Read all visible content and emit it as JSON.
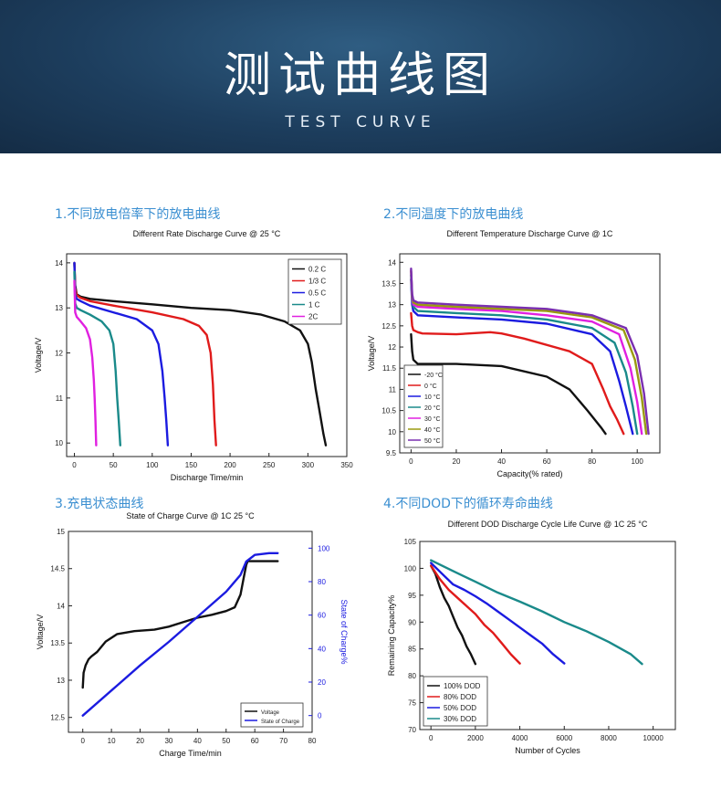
{
  "banner": {
    "title": "测试曲线图",
    "subtitle": "TEST CURVE"
  },
  "sections": [
    "1.不同放电倍率下的放电曲线",
    "2.不同温度下的放电曲线",
    "3.充电状态曲线",
    "4.不同DOD下的循环寿命曲线"
  ],
  "colors": {
    "banner": "#1d3e5e",
    "section_title": "#3b8fd1"
  },
  "chart_data": [
    {
      "type": "line",
      "title": "Different Rate Discharge Curve @ 25 °C",
      "xlabel": "Discharge Time/min",
      "ylabel": "Voltage/V",
      "xlim": [
        -10,
        350
      ],
      "ylim": [
        9.7,
        14.2
      ],
      "xticks": [
        0,
        50,
        100,
        150,
        200,
        250,
        300,
        350
      ],
      "yticks": [
        10,
        11,
        12,
        13,
        14
      ],
      "legend_position": "top-right",
      "series": [
        {
          "name": "0.2 C",
          "color": "#111111",
          "x": [
            0,
            1,
            3,
            8,
            20,
            50,
            100,
            150,
            200,
            240,
            270,
            290,
            300,
            305,
            310,
            315,
            320,
            323
          ],
          "y": [
            14.0,
            13.5,
            13.3,
            13.25,
            13.2,
            13.15,
            13.08,
            13.0,
            12.95,
            12.85,
            12.7,
            12.5,
            12.2,
            11.8,
            11.2,
            10.7,
            10.2,
            9.95
          ]
        },
        {
          "name": "1/3 C",
          "color": "#e01b1b",
          "x": [
            0,
            1,
            3,
            8,
            20,
            50,
            100,
            140,
            160,
            170,
            175,
            178,
            180,
            182
          ],
          "y": [
            14.0,
            13.45,
            13.28,
            13.22,
            13.15,
            13.05,
            12.9,
            12.75,
            12.6,
            12.4,
            12.0,
            11.3,
            10.5,
            9.95
          ]
        },
        {
          "name": "0.5 C",
          "color": "#1b1be0",
          "x": [
            0,
            1,
            3,
            8,
            20,
            50,
            80,
            100,
            108,
            113,
            116,
            118,
            120
          ],
          "y": [
            14.0,
            13.3,
            13.2,
            13.15,
            13.05,
            12.9,
            12.75,
            12.5,
            12.2,
            11.6,
            11.0,
            10.5,
            9.95
          ]
        },
        {
          "name": "1 C",
          "color": "#1a8a8a",
          "x": [
            0,
            1,
            3,
            8,
            20,
            35,
            45,
            50,
            53,
            55,
            57,
            59
          ],
          "y": [
            13.8,
            13.1,
            13.0,
            12.95,
            12.85,
            12.7,
            12.5,
            12.2,
            11.6,
            11.0,
            10.5,
            9.95
          ]
        },
        {
          "name": "2C",
          "color": "#e020e0",
          "x": [
            0,
            1,
            3,
            8,
            15,
            20,
            23,
            25,
            26,
            27,
            28
          ],
          "y": [
            13.6,
            12.9,
            12.8,
            12.7,
            12.55,
            12.3,
            11.9,
            11.4,
            11.0,
            10.5,
            9.95
          ]
        }
      ]
    },
    {
      "type": "line",
      "title": "Different Temperature Discharge Curve @ 1C",
      "xlabel": "Capacity(% rated)",
      "ylabel": "Voltage/V",
      "xlim": [
        -5,
        110
      ],
      "ylim": [
        9.5,
        14.2
      ],
      "xticks": [
        0,
        20,
        40,
        60,
        80,
        100
      ],
      "yticks": [
        9.5,
        10.0,
        10.5,
        11.0,
        11.5,
        12.0,
        12.5,
        13.0,
        13.5,
        14.0
      ],
      "legend_position": "bottom-left",
      "series": [
        {
          "name": "-20 °C",
          "color": "#111111",
          "x": [
            0,
            0.5,
            1,
            3,
            5,
            20,
            40,
            60,
            70,
            78,
            84,
            86
          ],
          "y": [
            12.3,
            11.9,
            11.7,
            11.6,
            11.6,
            11.6,
            11.55,
            11.3,
            11.0,
            10.5,
            10.1,
            9.95
          ]
        },
        {
          "name": "0 °C",
          "color": "#e01b1b",
          "x": [
            0,
            0.5,
            1,
            3,
            5,
            20,
            35,
            40,
            50,
            70,
            80,
            85,
            88,
            91,
            94
          ],
          "y": [
            12.8,
            12.5,
            12.4,
            12.35,
            12.32,
            12.3,
            12.35,
            12.32,
            12.2,
            11.9,
            11.6,
            11.0,
            10.6,
            10.3,
            9.95
          ]
        },
        {
          "name": "10 °C",
          "color": "#1b1be0",
          "x": [
            0,
            0.5,
            1,
            3,
            20,
            40,
            60,
            80,
            88,
            92,
            95,
            98
          ],
          "y": [
            13.6,
            13.0,
            12.85,
            12.75,
            12.7,
            12.65,
            12.55,
            12.3,
            11.9,
            11.2,
            10.6,
            9.95
          ]
        },
        {
          "name": "20 °C",
          "color": "#1a8a8a",
          "x": [
            0,
            0.5,
            1,
            3,
            20,
            40,
            60,
            80,
            90,
            95,
            98,
            100
          ],
          "y": [
            13.7,
            13.1,
            12.95,
            12.85,
            12.8,
            12.75,
            12.65,
            12.45,
            12.1,
            11.4,
            10.6,
            9.95
          ]
        },
        {
          "name": "30 °C",
          "color": "#e020e0",
          "x": [
            0,
            0.5,
            1,
            3,
            20,
            40,
            60,
            80,
            92,
            97,
            100,
            102
          ],
          "y": [
            13.8,
            13.15,
            13.0,
            12.95,
            12.9,
            12.85,
            12.75,
            12.6,
            12.3,
            11.5,
            10.7,
            9.95
          ]
        },
        {
          "name": "40 °C",
          "color": "#9a9a10",
          "x": [
            0,
            0.5,
            1,
            3,
            20,
            40,
            60,
            80,
            94,
            99,
            102,
            104
          ],
          "y": [
            13.8,
            13.2,
            13.05,
            13.0,
            12.95,
            12.9,
            12.85,
            12.7,
            12.4,
            11.7,
            10.8,
            9.95
          ]
        },
        {
          "name": "50 °C",
          "color": "#7a2fb0",
          "x": [
            0,
            0.5,
            1,
            3,
            20,
            40,
            60,
            80,
            95,
            100,
            103,
            105
          ],
          "y": [
            13.85,
            13.25,
            13.1,
            13.05,
            13.0,
            12.95,
            12.9,
            12.75,
            12.45,
            11.8,
            10.9,
            9.95
          ]
        }
      ]
    },
    {
      "type": "line",
      "title": "State of Charge Curve @ 1C  25 °C",
      "xlabel": "Charge Time/min",
      "ylabel": "Voltage/V",
      "y2label": "State of Charge%",
      "xlim": [
        -5,
        80
      ],
      "ylim": [
        12.3,
        15.0
      ],
      "y2lim": [
        -10,
        110
      ],
      "xticks": [
        0,
        10,
        20,
        30,
        40,
        50,
        60,
        70,
        80
      ],
      "yticks": [
        12.5,
        13.0,
        13.5,
        14.0,
        14.5,
        15.0
      ],
      "y2ticks": [
        0,
        20,
        40,
        60,
        80,
        100
      ],
      "legend_position": "bottom-right",
      "series": [
        {
          "name": "Voltage",
          "color": "#111111",
          "axis": "left",
          "x": [
            0,
            0.3,
            1,
            2,
            3,
            5,
            8,
            12,
            18,
            25,
            30,
            35,
            40,
            45,
            50,
            53,
            55,
            56,
            57,
            57.5,
            60,
            68
          ],
          "y": [
            12.9,
            13.1,
            13.2,
            13.28,
            13.32,
            13.38,
            13.52,
            13.62,
            13.66,
            13.68,
            13.72,
            13.78,
            13.84,
            13.88,
            13.93,
            13.98,
            14.15,
            14.35,
            14.55,
            14.6,
            14.6,
            14.6
          ]
        },
        {
          "name": "State of Charge",
          "color": "#1b1be0",
          "axis": "right",
          "x": [
            0,
            10,
            20,
            30,
            40,
            50,
            55,
            57,
            60,
            65,
            68
          ],
          "y": [
            0,
            15,
            30,
            44,
            59,
            74,
            84,
            92,
            96,
            97,
            97
          ]
        }
      ]
    },
    {
      "type": "line",
      "title": "Different DOD Discharge Cycle Life Curve @ 1C  25 °C",
      "xlabel": "Number of Cycles",
      "ylabel": "Remaining Capacity%",
      "xlim": [
        -500,
        11000
      ],
      "ylim": [
        70,
        105
      ],
      "xticks": [
        0,
        2000,
        4000,
        6000,
        8000,
        10000
      ],
      "yticks": [
        70,
        75,
        80,
        85,
        90,
        95,
        100,
        105
      ],
      "legend_position": "bottom-left",
      "series": [
        {
          "name": "100% DOD",
          "color": "#111111",
          "x": [
            0,
            200,
            400,
            600,
            800,
            1000,
            1200,
            1400,
            1600,
            1800,
            2000
          ],
          "y": [
            100.5,
            99,
            96.5,
            94.5,
            93,
            91,
            89,
            87.5,
            85.5,
            84,
            82.2
          ]
        },
        {
          "name": "80% DOD",
          "color": "#e01b1b",
          "x": [
            0,
            400,
            800,
            1200,
            1600,
            2000,
            2400,
            2800,
            3200,
            3600,
            4000
          ],
          "y": [
            100.5,
            98,
            96,
            94.5,
            93,
            91.5,
            89.5,
            88,
            86,
            84,
            82.3
          ]
        },
        {
          "name": "50% DOD",
          "color": "#1b1be0",
          "x": [
            0,
            500,
            1000,
            1500,
            2000,
            2500,
            3000,
            3500,
            4000,
            4500,
            5000,
            5500,
            6000
          ],
          "y": [
            101,
            99,
            97,
            96,
            94.8,
            93.5,
            92,
            90.5,
            89,
            87.5,
            86,
            84,
            82.3
          ]
        },
        {
          "name": "30% DOD",
          "color": "#1a8a8a",
          "x": [
            0,
            1000,
            2000,
            3000,
            4000,
            5000,
            6000,
            7000,
            8000,
            9000,
            9500
          ],
          "y": [
            101.5,
            99.5,
            97.5,
            95.5,
            93.8,
            92,
            90,
            88.3,
            86.3,
            84,
            82.2
          ]
        }
      ]
    }
  ]
}
